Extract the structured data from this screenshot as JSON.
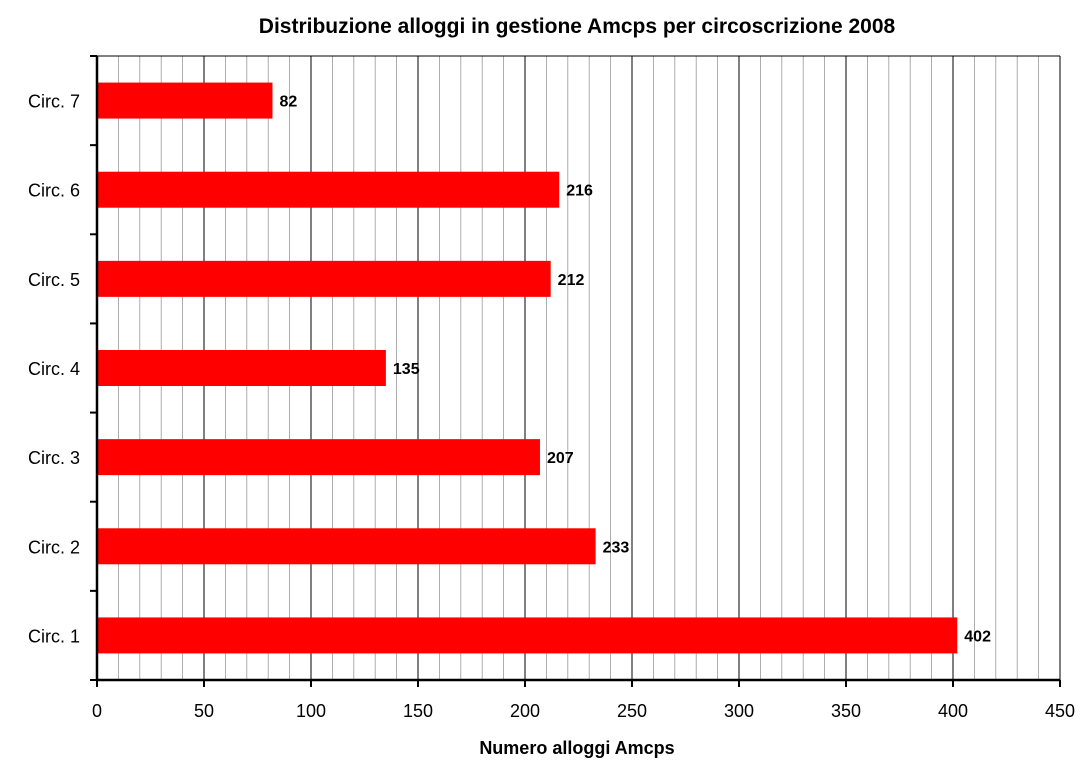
{
  "chart_data": {
    "type": "bar",
    "orientation": "horizontal",
    "title": "Distribuzione alloggi in gestione Amcps per circoscrizione 2008",
    "xlabel": "Numero alloggi Amcps",
    "ylabel": "",
    "categories": [
      "Circ. 1",
      "Circ. 2",
      "Circ. 3",
      "Circ. 4",
      "Circ. 5",
      "Circ. 6",
      "Circ. 7"
    ],
    "values": [
      402,
      233,
      207,
      135,
      212,
      216,
      82
    ],
    "xlim": [
      0,
      450
    ],
    "x_major_ticks": [
      0,
      50,
      100,
      150,
      200,
      250,
      300,
      350,
      400,
      450
    ],
    "x_minor_step": 10,
    "grid": true,
    "legend": false,
    "data_labels": true,
    "bar_color": "#ff0000"
  }
}
